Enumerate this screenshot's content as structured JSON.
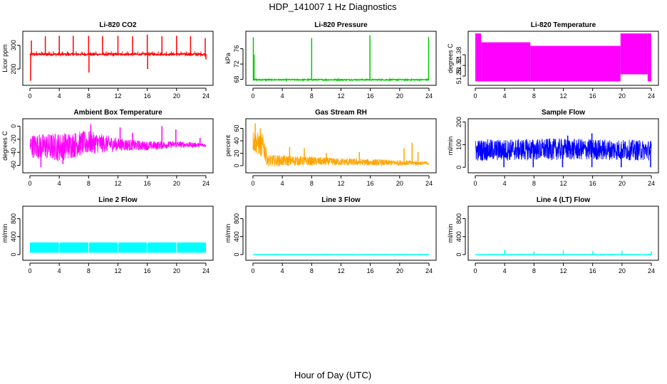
{
  "figure": {
    "title": "HDP_141007  1 Hz Diagnostics",
    "xlabel": "Hour of Day (UTC)"
  },
  "chart_data": [
    {
      "type": "line",
      "title": "Li-820 CO2",
      "ylabel": "Licor ppm",
      "color": "#ff0000",
      "xlim": [
        0,
        24
      ],
      "ylim": [
        140,
        350
      ],
      "xticks": [
        0,
        4,
        8,
        12,
        16,
        20,
        24
      ],
      "yticks": [
        200,
        300
      ],
      "baseline": 262,
      "band": 4,
      "spikes": [
        [
          0.1,
          150
        ],
        [
          0.2,
          320
        ],
        [
          2.1,
          338
        ],
        [
          4.0,
          340
        ],
        [
          5.9,
          340
        ],
        [
          8.0,
          340
        ],
        [
          8.05,
          185
        ],
        [
          9.9,
          338
        ],
        [
          12.0,
          340
        ],
        [
          14.0,
          338
        ],
        [
          16.0,
          345
        ],
        [
          16.05,
          200
        ],
        [
          18.0,
          338
        ],
        [
          20.0,
          340
        ],
        [
          21.9,
          338
        ],
        [
          23.9,
          330
        ],
        [
          24.0,
          240
        ]
      ],
      "bumps": [
        0.9,
        1.6,
        2.6,
        3.2,
        4.4,
        5.1,
        6.3,
        7.1,
        9.0,
        10.4,
        11.1,
        12.6,
        13.3,
        14.7,
        15.4,
        16.7,
        17.5,
        18.6,
        19.3,
        20.6,
        21.3,
        22.5,
        23.3
      ]
    },
    {
      "type": "line",
      "title": "Li-820 Pressure",
      "ylabel": "kPa",
      "color": "#00cc00",
      "xlim": [
        0,
        24
      ],
      "ylim": [
        67,
        80
      ],
      "xticks": [
        0,
        4,
        8,
        12,
        16,
        20,
        24
      ],
      "yticks": [
        68,
        72,
        76
      ],
      "baseline": 67.9,
      "band": 0.15,
      "spikes": [
        [
          0.05,
          79.0
        ],
        [
          0.15,
          74.5
        ],
        [
          8.0,
          78.8
        ],
        [
          15.95,
          79.5
        ],
        [
          23.95,
          79.1
        ]
      ]
    },
    {
      "type": "line",
      "title": "Li-820 Temperature",
      "ylabel": "degrees C",
      "color": "#ff00ff",
      "xlim": [
        0,
        24
      ],
      "ylim": [
        51.22,
        51.5
      ],
      "xticks": [
        0,
        4,
        8,
        12,
        16,
        20,
        24
      ],
      "yticks": [
        51.26,
        51.32,
        51.38
      ],
      "segments": [
        [
          0.0,
          0.8,
          51.23,
          51.5
        ],
        [
          0.8,
          7.5,
          51.23,
          51.45
        ],
        [
          7.5,
          19.8,
          51.23,
          51.43
        ],
        [
          19.8,
          23.5,
          51.27,
          51.5
        ],
        [
          23.5,
          24.0,
          51.23,
          51.5
        ]
      ]
    },
    {
      "type": "line",
      "title": "Ambient Box Temperature",
      "ylabel": "degrees C",
      "color": "#ff00ff",
      "xlim": [
        0,
        24
      ],
      "ylim": [
        -68,
        8
      ],
      "xticks": [
        0,
        4,
        8,
        12,
        16,
        20,
        24
      ],
      "yticks": [
        -60,
        -40,
        -20,
        0
      ],
      "noise": [
        [
          0,
          -30,
          18
        ],
        [
          4,
          -32,
          22
        ],
        [
          8,
          -25,
          18
        ],
        [
          12,
          -28,
          10
        ],
        [
          16,
          -30,
          7
        ],
        [
          20,
          -28,
          5
        ],
        [
          24,
          -29,
          3
        ]
      ],
      "spikes": [
        [
          1.5,
          -63
        ],
        [
          4.5,
          -58
        ],
        [
          8.3,
          3
        ],
        [
          12.3,
          -2
        ],
        [
          14,
          -10
        ],
        [
          18,
          0
        ],
        [
          19.9,
          -5
        ],
        [
          23.2,
          -18
        ]
      ]
    },
    {
      "type": "line",
      "title": "Gas Stream RH",
      "ylabel": "percent",
      "color": "#ffa500",
      "xlim": [
        0,
        24
      ],
      "ylim": [
        -8,
        72
      ],
      "xticks": [
        0,
        4,
        8,
        12,
        16,
        20,
        24
      ],
      "yticks": [
        0,
        20,
        40,
        60
      ],
      "noise": [
        [
          0,
          40,
          18
        ],
        [
          1.5,
          30,
          20
        ],
        [
          2,
          8,
          10
        ],
        [
          6,
          8,
          8
        ],
        [
          12,
          6,
          6
        ],
        [
          18,
          5,
          5
        ],
        [
          24,
          4,
          3
        ]
      ],
      "spikes": [
        [
          0.3,
          68
        ],
        [
          1.0,
          60
        ],
        [
          5.0,
          30
        ],
        [
          7.0,
          28
        ],
        [
          10.0,
          20
        ],
        [
          14.5,
          22
        ],
        [
          20.6,
          28
        ],
        [
          21.7,
          37
        ],
        [
          22.5,
          22
        ]
      ]
    },
    {
      "type": "line",
      "title": "Sample Flow",
      "ylabel": "ml/min",
      "color": "#0000ff",
      "xlim": [
        0,
        24
      ],
      "ylim": [
        -15,
        205
      ],
      "xticks": [
        0,
        4,
        8,
        12,
        16,
        20,
        24
      ],
      "yticks": [
        0,
        100,
        200
      ],
      "noise": [
        [
          0,
          75,
          48
        ],
        [
          12,
          80,
          48
        ],
        [
          24,
          75,
          45
        ]
      ],
      "spikes": [
        [
          3.9,
          0
        ],
        [
          7.9,
          0
        ],
        [
          11.9,
          0
        ],
        [
          12.6,
          140
        ],
        [
          15.9,
          0
        ],
        [
          15.9,
          150
        ],
        [
          19.9,
          0
        ],
        [
          23.9,
          0
        ]
      ]
    },
    {
      "type": "line",
      "title": "Line 2 Flow",
      "ylabel": "ml/min",
      "color": "#00ffff",
      "xlim": [
        0,
        24
      ],
      "ylim": [
        -80,
        1030
      ],
      "xticks": [
        0,
        4,
        8,
        12,
        16,
        20,
        24
      ],
      "yticks": [
        0,
        400,
        800
      ],
      "band_range": [
        40,
        270
      ],
      "gaps": [
        4.0,
        8.0,
        12.0,
        16.0,
        20.0
      ]
    },
    {
      "type": "line",
      "title": "Line 3 Flow",
      "ylabel": "ml/min",
      "color": "#00ffff",
      "xlim": [
        0,
        24
      ],
      "ylim": [
        -80,
        1030
      ],
      "xticks": [
        0,
        4,
        8,
        12,
        16,
        20,
        24
      ],
      "yticks": [
        0,
        400,
        800
      ],
      "baseline": 0,
      "band": 4
    },
    {
      "type": "line",
      "title": "Line 4 (LT) Flow",
      "ylabel": "ml/min",
      "color": "#00ffff",
      "xlim": [
        0,
        24
      ],
      "ylim": [
        -80,
        1030
      ],
      "xticks": [
        0,
        4,
        8,
        12,
        16,
        20,
        24
      ],
      "yticks": [
        0,
        400,
        800
      ],
      "baseline": 0,
      "band": 4,
      "spikes": [
        [
          4.0,
          100
        ],
        [
          8.0,
          70
        ],
        [
          12.0,
          95
        ],
        [
          16.0,
          75
        ],
        [
          20.0,
          85
        ],
        [
          24.0,
          70
        ]
      ]
    }
  ]
}
